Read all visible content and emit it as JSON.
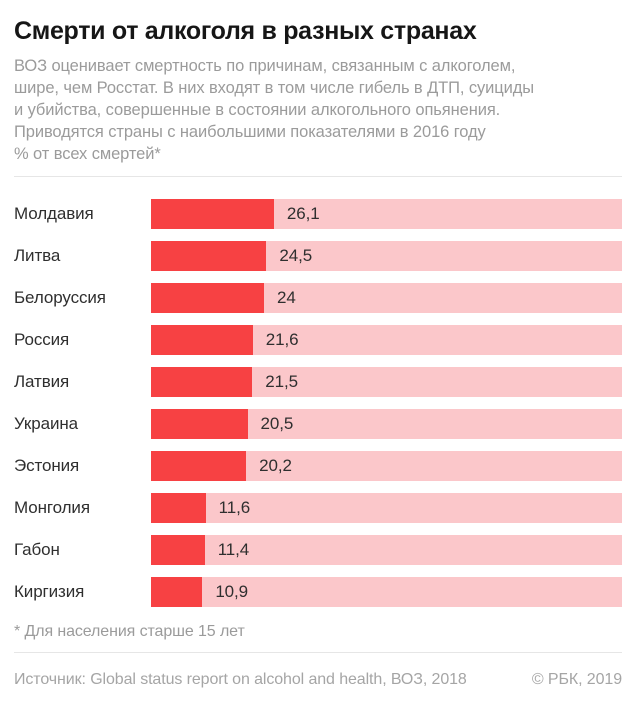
{
  "colors": {
    "bar_fill": "#f74143",
    "bar_track": "#fbc7ca",
    "title_text": "#161616",
    "body_text": "#9b9b9b",
    "label_text": "#2f2f2f",
    "divider": "#e6e6e6",
    "footer_text": "#a5a5a5"
  },
  "header": {
    "title": "Смерти от алкоголя в разных странах",
    "subtitle_lines": [
      "ВОЗ оценивает смертность по причинам, связанным с алкоголем,",
      "шире, чем Росстат. В них входят в том числе гибель в ДТП, суициды",
      "и убийства, совершенные в состоянии алкогольного опьянения.",
      "Приводятся страны с наибольшими показателями в 2016 году"
    ],
    "unit_line": "% от всех смертей*"
  },
  "chart_data": {
    "type": "bar",
    "orientation": "horizontal",
    "title": "Смерти от алкоголя в разных странах",
    "xlabel": "% от всех смертей",
    "ylabel": "",
    "xlim": [
      0,
      100
    ],
    "grid": false,
    "legend": false,
    "track_represents": "100% of all deaths",
    "categories": [
      "Молдавия",
      "Литва",
      "Белоруссия",
      "Россия",
      "Латвия",
      "Украина",
      "Эстония",
      "Монголия",
      "Габон",
      "Киргизия"
    ],
    "values": [
      26.1,
      24.5,
      24,
      21.6,
      21.5,
      20.5,
      20.2,
      11.6,
      11.4,
      10.9
    ],
    "value_labels": [
      "26,1",
      "24,5",
      "24",
      "21,6",
      "21,5",
      "20,5",
      "20,2",
      "11,6",
      "11,4",
      "10,9"
    ]
  },
  "footnote": "* Для населения старше 15 лет",
  "footer": {
    "source": "Источник: Global status report on alcohol and health, ВОЗ, 2018",
    "copyright": "© РБК, 2019"
  }
}
